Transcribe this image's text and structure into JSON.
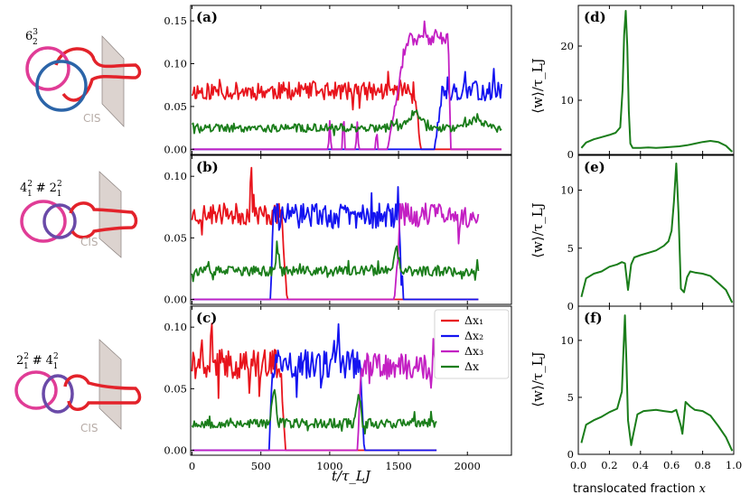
{
  "colors": {
    "dx1": "#e8141c",
    "dx2": "#1414f0",
    "dx3": "#c31fc3",
    "dx": "#1a7d1a",
    "knot_pink": "#e03c96",
    "knot_blue": "#2b64a8",
    "knot_purple": "#6a4aa8",
    "knot_red": "#e3222a",
    "wall": "#d9d0cc"
  },
  "knots": [
    {
      "label_base": "6",
      "label_sup": "3",
      "label_sub": "2",
      "cis": "CIS"
    },
    {
      "label_base": "4",
      "label_sup": "2",
      "label_sub": "1",
      "label_mid": "#",
      "label_base2": "2",
      "label_sup2": "2",
      "label_sub2": "1",
      "cis": "CIS"
    },
    {
      "label_base": "2",
      "label_sup": "2",
      "label_sub": "1",
      "label_mid": "#",
      "label_base2": "4",
      "label_sup2": "2",
      "label_sub2": "1",
      "cis": "CIS"
    }
  ],
  "chart_data": [
    {
      "panel": "(a)",
      "type": "line",
      "xlim": [
        -10,
        2320
      ],
      "ylim": [
        -0.006,
        0.168
      ],
      "yticks": [
        "0.00",
        "0.05",
        "0.10",
        "0.15"
      ],
      "xticks": [
        "0",
        "500",
        "1000",
        "1500",
        "2000"
      ],
      "series": [
        {
          "name": "Δx₁",
          "level": 0.068,
          "noise": 0.0065,
          "start": 0,
          "end": 1620,
          "rise": 0,
          "fall": 40,
          "seed": 11,
          "peaks": []
        },
        {
          "name": "Δx₂",
          "level": 0.068,
          "noise": 0.007,
          "start": 1760,
          "end": 2250,
          "rise": 60,
          "fall": 20,
          "seed": 13,
          "peaks": []
        },
        {
          "name": "Δx₃",
          "level": 0.13,
          "noise": 0.006,
          "start": 1420,
          "end": 1860,
          "rise": 140,
          "fall": 20,
          "seed": 17,
          "peaks": [
            {
              "x": 1000,
              "h": 0.03
            },
            {
              "x": 1100,
              "h": 0.045
            },
            {
              "x": 1200,
              "h": 0.03
            },
            {
              "x": 1340,
              "h": 0.025
            }
          ]
        },
        {
          "name": "Δx",
          "level": 0.025,
          "noise": 0.003,
          "start": 0,
          "end": 2250,
          "rise": 0,
          "fall": 0,
          "seed": 19,
          "bumps": [
            {
              "x": 1620,
              "h": 0.02,
              "w": 120
            },
            {
              "x": 2050,
              "h": 0.01,
              "w": 150
            }
          ],
          "peaks": []
        }
      ]
    },
    {
      "panel": "(b)",
      "type": "line",
      "xlim": [
        -10,
        2320
      ],
      "ylim": [
        -0.004,
        0.117
      ],
      "yticks": [
        "0.00",
        "0.05",
        "0.10"
      ],
      "xticks": [
        "0",
        "500",
        "1000",
        "1500",
        "2000"
      ],
      "series": [
        {
          "name": "Δx₁",
          "level": 0.069,
          "noise": 0.0055,
          "start": 0,
          "end": 650,
          "rise": 0,
          "fall": 40,
          "seed": 23,
          "peaks": [
            {
              "x": 430,
              "h": 0.04
            }
          ]
        },
        {
          "name": "Δx₂",
          "level": 0.068,
          "noise": 0.0065,
          "start": 570,
          "end": 1500,
          "rise": 20,
          "fall": 30,
          "seed": 29,
          "peaks": []
        },
        {
          "name": "Δx₃",
          "level": 0.068,
          "noise": 0.0065,
          "start": 1470,
          "end": 2080,
          "rise": 40,
          "fall": 0,
          "seed": 31,
          "peaks": []
        },
        {
          "name": "Δx",
          "level": 0.023,
          "noise": 0.0025,
          "start": 0,
          "end": 2080,
          "rise": 0,
          "fall": 0,
          "seed": 37,
          "bumps": [
            {
              "x": 620,
              "h": 0.017,
              "w": 30
            },
            {
              "x": 1485,
              "h": 0.02,
              "w": 30
            }
          ],
          "peaks": []
        }
      ]
    },
    {
      "panel": "(c)",
      "type": "line",
      "xlim": [
        -10,
        2320
      ],
      "ylim": [
        -0.004,
        0.117
      ],
      "yticks": [
        "0.00",
        "0.05",
        "0.10"
      ],
      "xticks": [
        "0",
        "500",
        "1000",
        "1500",
        "2000"
      ],
      "series": [
        {
          "name": "Δx₁",
          "level": 0.07,
          "noise": 0.0075,
          "start": 0,
          "end": 640,
          "rise": 0,
          "fall": 40,
          "seed": 41,
          "peaks": [
            {
              "x": 140,
              "h": 0.04
            }
          ]
        },
        {
          "name": "Δx₂",
          "level": 0.07,
          "noise": 0.0075,
          "start": 560,
          "end": 1220,
          "rise": 20,
          "fall": 30,
          "seed": 43,
          "peaks": [
            {
              "x": 1060,
              "h": 0.04
            }
          ]
        },
        {
          "name": "Δx₃",
          "level": 0.068,
          "noise": 0.0065,
          "start": 1200,
          "end": 1780,
          "rise": 30,
          "fall": 0,
          "seed": 47,
          "peaks": []
        },
        {
          "name": "Δx",
          "level": 0.022,
          "noise": 0.0025,
          "start": 0,
          "end": 1780,
          "rise": 0,
          "fall": 0,
          "seed": 53,
          "bumps": [
            {
              "x": 595,
              "h": 0.03,
              "w": 30
            },
            {
              "x": 1210,
              "h": 0.025,
              "w": 30
            }
          ],
          "peaks": []
        }
      ]
    },
    {
      "panel": "(d)",
      "type": "line",
      "xlim": [
        0,
        1
      ],
      "ylim": [
        0,
        27.5
      ],
      "yticks": [
        "0",
        "10",
        "20"
      ],
      "yvals": [
        0,
        10,
        20
      ],
      "ylabel": "⟨w⟩/τ_LJ",
      "series": [
        {
          "name": "⟨w⟩",
          "x": [
            0.02,
            0.05,
            0.1,
            0.15,
            0.2,
            0.24,
            0.27,
            0.285,
            0.295,
            0.305,
            0.315,
            0.325,
            0.335,
            0.35,
            0.4,
            0.45,
            0.5,
            0.55,
            0.6,
            0.65,
            0.7,
            0.75,
            0.8,
            0.85,
            0.9,
            0.95,
            0.99
          ],
          "y": [
            1.2,
            2.2,
            2.8,
            3.2,
            3.6,
            4.0,
            5.0,
            12,
            22,
            26.5,
            20,
            8,
            2,
            1.2,
            1.2,
            1.3,
            1.2,
            1.3,
            1.4,
            1.5,
            1.7,
            2.0,
            2.3,
            2.5,
            2.3,
            1.6,
            0.5
          ]
        }
      ]
    },
    {
      "panel": "(e)",
      "type": "line",
      "xlim": [
        0,
        1
      ],
      "ylim": [
        0,
        13
      ],
      "yticks": [
        "0",
        "5",
        "10"
      ],
      "yvals": [
        0,
        5,
        10
      ],
      "ylabel": "⟨w⟩/τ_LJ",
      "series": [
        {
          "name": "⟨w⟩",
          "x": [
            0.02,
            0.05,
            0.1,
            0.15,
            0.2,
            0.25,
            0.28,
            0.3,
            0.32,
            0.34,
            0.36,
            0.4,
            0.45,
            0.5,
            0.55,
            0.58,
            0.6,
            0.615,
            0.63,
            0.645,
            0.66,
            0.68,
            0.7,
            0.72,
            0.75,
            0.8,
            0.85,
            0.9,
            0.95,
            0.99
          ],
          "y": [
            0.8,
            2.4,
            2.8,
            3.0,
            3.4,
            3.6,
            3.8,
            3.7,
            1.4,
            3.6,
            4.2,
            4.4,
            4.6,
            4.8,
            5.2,
            5.6,
            6.5,
            9,
            12.3,
            8,
            1.5,
            1.2,
            2.5,
            3.0,
            2.9,
            2.8,
            2.6,
            2.0,
            1.4,
            0.3
          ]
        }
      ]
    },
    {
      "panel": "(f)",
      "type": "line",
      "xlim": [
        0,
        1
      ],
      "ylim": [
        0,
        13
      ],
      "yticks": [
        "0",
        "5",
        "10"
      ],
      "yvals": [
        0,
        5,
        10
      ],
      "ylabel": "⟨w⟩/τ_LJ",
      "series": [
        {
          "name": "⟨w⟩",
          "x": [
            0.02,
            0.05,
            0.1,
            0.15,
            0.2,
            0.25,
            0.28,
            0.29,
            0.3,
            0.31,
            0.32,
            0.34,
            0.35,
            0.38,
            0.42,
            0.5,
            0.55,
            0.6,
            0.63,
            0.66,
            0.67,
            0.69,
            0.72,
            0.75,
            0.8,
            0.85,
            0.9,
            0.95,
            0.99
          ],
          "y": [
            1.0,
            2.6,
            3.0,
            3.3,
            3.7,
            4.0,
            5.5,
            9,
            12.2,
            8,
            3,
            0.8,
            1.5,
            3.5,
            3.8,
            3.9,
            3.8,
            3.7,
            3.9,
            2.5,
            1.8,
            4.6,
            4.2,
            3.9,
            3.8,
            3.4,
            2.5,
            1.5,
            0.3
          ]
        }
      ]
    }
  ],
  "axes": {
    "shared_xlabel": "t/τ_LJ",
    "right_xlabel": "translocated fraction",
    "right_xlabel_var": "x",
    "right_xticks": [
      "0.0",
      "0.2",
      "0.4",
      "0.6",
      "0.8",
      "1.0"
    ]
  },
  "legend": {
    "items": [
      "Δx₁",
      "Δx₂",
      "Δx₃",
      "Δx"
    ]
  }
}
